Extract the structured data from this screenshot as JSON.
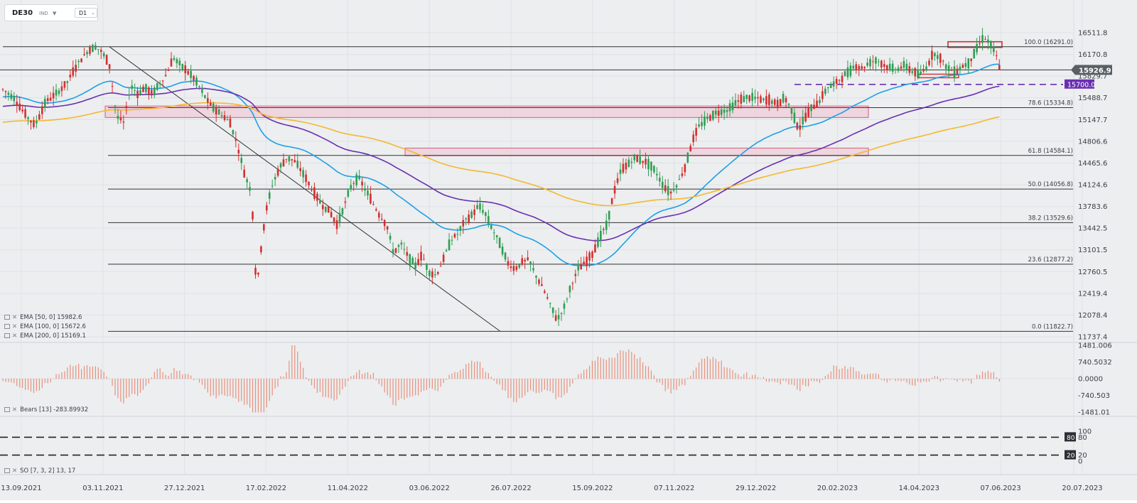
{
  "app": {
    "symbol": "DE30",
    "market": "IND",
    "timeframe": "D1"
  },
  "colors": {
    "background": "#eceef0",
    "bull_candle": "#2e9e52",
    "bear_candle": "#d32f2f",
    "ema50": "#1ea0e6",
    "ema100": "#6a2fb0",
    "ema200": "#f5b82e",
    "level_line": "#333333",
    "resistance_zone": "#f0c8d4",
    "price_tag": "#5a5f66",
    "level_tag": "#6a2fb0",
    "oscillator_bars": "#e8907a",
    "stoch_k": "#3a7fdc",
    "stoch_d": "#8fb8ec"
  },
  "legend": {
    "ema50": "EMA [50, 0]  15982.6",
    "ema100": "EMA [100, 0]  15672.6",
    "ema200": "EMA [200, 0]  15169.1",
    "bears": "Bears [13]  -283.89932",
    "so": "SO [7, 3, 2]  13, 17"
  },
  "price_tag": "15926.9",
  "level_tag": "15700.0",
  "chart_data": [
    {
      "type": "candlestick",
      "title": "DE30",
      "x_labels": [
        "13.09.2021",
        "03.11.2021",
        "27.12.2021",
        "17.02.2022",
        "11.04.2022",
        "03.06.2022",
        "26.07.2022",
        "15.09.2022",
        "07.11.2022",
        "29.12.2022",
        "20.02.2023",
        "14.04.2023",
        "07.06.2023",
        "20.07.2023"
      ],
      "y_ticks": [
        "16511.8",
        "16170.8",
        "15829.7",
        "15488.7",
        "15147.7",
        "14806.6",
        "14465.6",
        "14124.6",
        "13783.6",
        "13442.5",
        "13101.5",
        "12760.5",
        "12419.4",
        "12078.4",
        "11737.4"
      ],
      "ylim": [
        11737.4,
        16511.8
      ],
      "close_path": [
        [
          0,
          15620
        ],
        [
          15,
          15500
        ],
        [
          30,
          15250
        ],
        [
          45,
          15050
        ],
        [
          60,
          15420
        ],
        [
          75,
          15550
        ],
        [
          90,
          15720
        ],
        [
          105,
          16020
        ],
        [
          120,
          16230
        ],
        [
          130,
          16300
        ],
        [
          140,
          16200
        ],
        [
          150,
          16000
        ],
        [
          160,
          15200
        ],
        [
          170,
          15100
        ],
        [
          180,
          15680
        ],
        [
          190,
          15550
        ],
        [
          200,
          15650
        ],
        [
          210,
          15550
        ],
        [
          220,
          15700
        ],
        [
          230,
          15850
        ],
        [
          240,
          16120
        ],
        [
          250,
          16000
        ],
        [
          260,
          15900
        ],
        [
          270,
          15780
        ],
        [
          280,
          15600
        ],
        [
          290,
          15400
        ],
        [
          300,
          15300
        ],
        [
          310,
          15200
        ],
        [
          320,
          15100
        ],
        [
          330,
          14750
        ],
        [
          340,
          14300
        ],
        [
          350,
          14000
        ],
        [
          357,
          12450
        ],
        [
          365,
          13300
        ],
        [
          372,
          13800
        ],
        [
          380,
          14150
        ],
        [
          390,
          14400
        ],
        [
          400,
          14550
        ],
        [
          410,
          14500
        ],
        [
          420,
          14350
        ],
        [
          430,
          14150
        ],
        [
          440,
          13950
        ],
        [
          450,
          13800
        ],
        [
          460,
          13700
        ],
        [
          470,
          13500
        ],
        [
          480,
          13780
        ],
        [
          490,
          14100
        ],
        [
          500,
          14250
        ],
        [
          510,
          14050
        ],
        [
          520,
          13850
        ],
        [
          530,
          13650
        ],
        [
          540,
          13500
        ],
        [
          550,
          13050
        ],
        [
          560,
          13200
        ],
        [
          570,
          13000
        ],
        [
          580,
          12850
        ],
        [
          590,
          13020
        ],
        [
          600,
          12750
        ],
        [
          610,
          12700
        ],
        [
          620,
          12950
        ],
        [
          630,
          13250
        ],
        [
          640,
          13350
        ],
        [
          650,
          13550
        ],
        [
          660,
          13650
        ],
        [
          670,
          13800
        ],
        [
          680,
          13650
        ],
        [
          690,
          13400
        ],
        [
          700,
          13200
        ],
        [
          710,
          12900
        ],
        [
          720,
          12800
        ],
        [
          730,
          12900
        ],
        [
          740,
          12950
        ],
        [
          750,
          12700
        ],
        [
          760,
          12500
        ],
        [
          770,
          12250
        ],
        [
          780,
          12000
        ],
        [
          790,
          12200
        ],
        [
          800,
          12550
        ],
        [
          810,
          12800
        ],
        [
          820,
          12900
        ],
        [
          830,
          13050
        ],
        [
          840,
          13300
        ],
        [
          850,
          13500
        ],
        [
          860,
          14000
        ],
        [
          870,
          14350
        ],
        [
          880,
          14450
        ],
        [
          890,
          14550
        ],
        [
          900,
          14500
        ],
        [
          910,
          14450
        ],
        [
          920,
          14300
        ],
        [
          930,
          14100
        ],
        [
          940,
          14000
        ],
        [
          950,
          14150
        ],
        [
          960,
          14400
        ],
        [
          970,
          14800
        ],
        [
          980,
          15050
        ],
        [
          990,
          15150
        ],
        [
          1000,
          15230
        ],
        [
          1010,
          15280
        ],
        [
          1020,
          15300
        ],
        [
          1030,
          15400
        ],
        [
          1040,
          15470
        ],
        [
          1050,
          15500
        ],
        [
          1060,
          15480
        ],
        [
          1070,
          15450
        ],
        [
          1080,
          15450
        ],
        [
          1090,
          15380
        ],
        [
          1100,
          15500
        ],
        [
          1110,
          15300
        ],
        [
          1120,
          15000
        ],
        [
          1130,
          15200
        ],
        [
          1140,
          15350
        ],
        [
          1150,
          15450
        ],
        [
          1160,
          15650
        ],
        [
          1170,
          15700
        ],
        [
          1180,
          15800
        ],
        [
          1190,
          15900
        ],
        [
          1200,
          16000
        ],
        [
          1210,
          15950
        ],
        [
          1220,
          16050
        ],
        [
          1230,
          16080
        ],
        [
          1240,
          16000
        ],
        [
          1250,
          15950
        ],
        [
          1260,
          15950
        ],
        [
          1270,
          16000
        ],
        [
          1280,
          15900
        ],
        [
          1290,
          15850
        ],
        [
          1300,
          15980
        ],
        [
          1310,
          16200
        ],
        [
          1320,
          16100
        ],
        [
          1330,
          15950
        ],
        [
          1340,
          15900
        ],
        [
          1350,
          15980
        ],
        [
          1360,
          16050
        ],
        [
          1370,
          16250
        ],
        [
          1380,
          16450
        ],
        [
          1390,
          16330
        ],
        [
          1400,
          16100
        ],
        [
          1405,
          15926.9
        ]
      ],
      "ema": [
        {
          "name": "EMA [50, 0]",
          "period": 50,
          "value": 15982.6
        },
        {
          "name": "EMA [100, 0]",
          "period": 100,
          "value": 15672.6
        },
        {
          "name": "EMA [200, 0]",
          "period": 200,
          "value": 15169.1
        }
      ],
      "fibonacci": [
        {
          "label": "100.0 (16291.0)",
          "value": 16291.0
        },
        {
          "label": "78.6 (15334.8)",
          "value": 15334.8
        },
        {
          "label": "61.8 (14584.1)",
          "value": 14584.1
        },
        {
          "label": "50.0 (14056.8)",
          "value": 14056.8
        },
        {
          "label": "38.2 (13529.6)",
          "value": 13529.6
        },
        {
          "label": "23.6 (12877.2)",
          "value": 12877.2
        },
        {
          "label": "0.0 (11822.7)",
          "value": 11822.7
        }
      ],
      "horizontal_levels": [
        {
          "value": 16291.0,
          "style": "solid"
        },
        {
          "value": 15926.9,
          "style": "solid"
        },
        {
          "value": 15700.0,
          "style": "dashed"
        }
      ],
      "zones": [
        {
          "from": 15180,
          "to": 15360
        },
        {
          "from": 14580,
          "to": 14700
        }
      ],
      "trendline": {
        "from": [
          150,
          16291.0
        ],
        "to": [
          700,
          11822.7
        ]
      },
      "last_price": 15926.9
    },
    {
      "type": "bar",
      "title": "Bears [13]",
      "y_ticks": [
        "1481.006",
        "740.5032",
        "0.0000",
        "-740.503",
        "-1481.01"
      ],
      "ylim": [
        -1481.01,
        1481.006
      ],
      "last_value": -283.89932
    },
    {
      "type": "line",
      "title": "SO [7, 3, 2]",
      "y_ticks": [
        "100",
        "80",
        "20",
        "0"
      ],
      "ylim": [
        0,
        100
      ],
      "levels": [
        80,
        20
      ],
      "last_values": [
        13,
        17
      ]
    }
  ]
}
